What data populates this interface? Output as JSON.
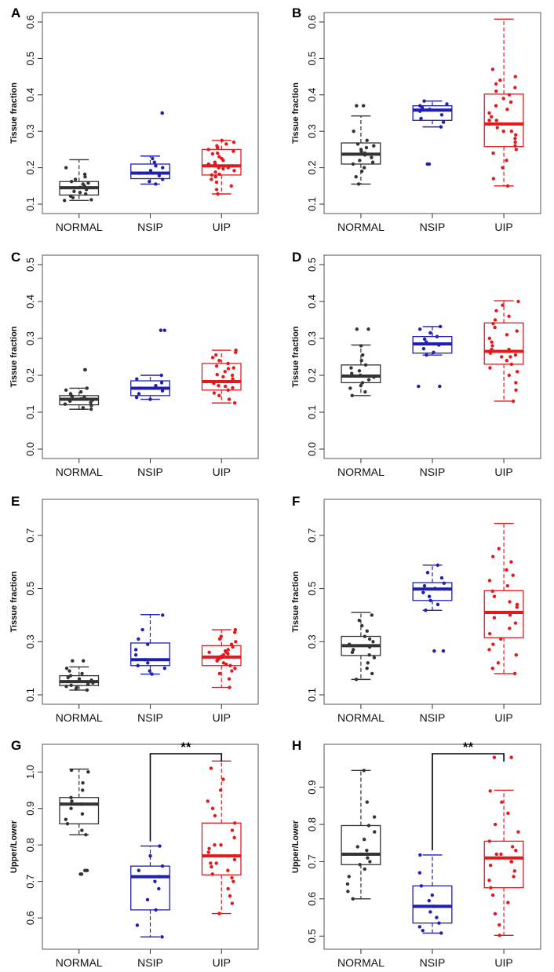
{
  "chart_data": [
    {
      "panel": "A",
      "type": "box",
      "ylabel": "Tissue fraction",
      "ylim": [
        0.1,
        0.6
      ],
      "yticks": [
        0.1,
        0.2,
        0.3,
        0.4,
        0.5,
        0.6
      ],
      "categories": [
        "NORMAL",
        "NSIP",
        "UIP"
      ],
      "boxes": [
        {
          "category": "NORMAL",
          "color": "#333333",
          "whisker_low": 0.11,
          "q1": 0.125,
          "median": 0.145,
          "q3": 0.162,
          "whisker_high": 0.222,
          "points": [
            0.11,
            0.112,
            0.118,
            0.122,
            0.128,
            0.132,
            0.135,
            0.14,
            0.143,
            0.146,
            0.15,
            0.155,
            0.158,
            0.162,
            0.168,
            0.175,
            0.182,
            0.2
          ]
        },
        {
          "category": "NSIP",
          "color": "#1f1fb4",
          "whisker_low": 0.155,
          "q1": 0.17,
          "median": 0.185,
          "q3": 0.21,
          "whisker_high": 0.232,
          "points": [
            0.155,
            0.162,
            0.168,
            0.178,
            0.185,
            0.192,
            0.2,
            0.205,
            0.215,
            0.225,
            0.35,
            0.35
          ]
        },
        {
          "category": "UIP",
          "color": "#e31a1c",
          "whisker_low": 0.128,
          "q1": 0.18,
          "median": 0.205,
          "q3": 0.25,
          "whisker_high": 0.275,
          "points": [
            0.128,
            0.14,
            0.15,
            0.16,
            0.168,
            0.175,
            0.182,
            0.188,
            0.192,
            0.197,
            0.2,
            0.205,
            0.21,
            0.215,
            0.22,
            0.225,
            0.23,
            0.238,
            0.245,
            0.25,
            0.255,
            0.26,
            0.265,
            0.27,
            0.275,
            0.18,
            0.2,
            0.21,
            0.24
          ]
        }
      ]
    },
    {
      "panel": "B",
      "type": "box",
      "ylabel": "Tissue fraction",
      "ylim": [
        0.1,
        0.6
      ],
      "yticks": [
        0.1,
        0.2,
        0.3,
        0.4,
        0.5,
        0.6
      ],
      "categories": [
        "NORMAL",
        "NSIP",
        "UIP"
      ],
      "boxes": [
        {
          "category": "NORMAL",
          "color": "#333333",
          "whisker_low": 0.155,
          "q1": 0.21,
          "median": 0.237,
          "q3": 0.268,
          "whisker_high": 0.342,
          "points": [
            0.155,
            0.175,
            0.19,
            0.2,
            0.21,
            0.215,
            0.22,
            0.228,
            0.235,
            0.24,
            0.245,
            0.25,
            0.255,
            0.26,
            0.265,
            0.275,
            0.3,
            0.37,
            0.37
          ]
        },
        {
          "category": "NSIP",
          "color": "#1f1fb4",
          "whisker_low": 0.312,
          "q1": 0.33,
          "median": 0.358,
          "q3": 0.37,
          "whisker_high": 0.383,
          "points": [
            0.21,
            0.21,
            0.312,
            0.325,
            0.335,
            0.345,
            0.355,
            0.36,
            0.365,
            0.37,
            0.375,
            0.383
          ]
        },
        {
          "category": "UIP",
          "color": "#e31a1c",
          "whisker_low": 0.15,
          "q1": 0.258,
          "median": 0.32,
          "q3": 0.402,
          "whisker_high": 0.608,
          "points": [
            0.15,
            0.17,
            0.2,
            0.22,
            0.24,
            0.25,
            0.26,
            0.27,
            0.28,
            0.29,
            0.3,
            0.31,
            0.32,
            0.33,
            0.34,
            0.35,
            0.36,
            0.37,
            0.38,
            0.39,
            0.4,
            0.41,
            0.42,
            0.43,
            0.44,
            0.45,
            0.47,
            0.3,
            0.33
          ]
        }
      ]
    },
    {
      "panel": "C",
      "type": "box",
      "ylabel": "Tissue fraction",
      "ylim": [
        0.0,
        0.5
      ],
      "yticks": [
        0.0,
        0.1,
        0.2,
        0.3,
        0.4,
        0.5
      ],
      "categories": [
        "NORMAL",
        "NSIP",
        "UIP"
      ],
      "boxes": [
        {
          "category": "NORMAL",
          "color": "#333333",
          "whisker_low": 0.108,
          "q1": 0.12,
          "median": 0.135,
          "q3": 0.145,
          "whisker_high": 0.165,
          "points": [
            0.108,
            0.112,
            0.118,
            0.122,
            0.126,
            0.13,
            0.133,
            0.136,
            0.14,
            0.143,
            0.146,
            0.15,
            0.155,
            0.16,
            0.165,
            0.215,
            0.215
          ]
        },
        {
          "category": "NSIP",
          "color": "#1f1fb4",
          "whisker_low": 0.135,
          "q1": 0.145,
          "median": 0.165,
          "q3": 0.185,
          "whisker_high": 0.2,
          "points": [
            0.135,
            0.14,
            0.15,
            0.158,
            0.165,
            0.172,
            0.18,
            0.19,
            0.2,
            0.322,
            0.322
          ]
        },
        {
          "category": "UIP",
          "color": "#e31a1c",
          "whisker_low": 0.125,
          "q1": 0.16,
          "median": 0.183,
          "q3": 0.232,
          "whisker_high": 0.268,
          "points": [
            0.125,
            0.135,
            0.145,
            0.152,
            0.16,
            0.166,
            0.172,
            0.178,
            0.183,
            0.19,
            0.196,
            0.202,
            0.21,
            0.218,
            0.225,
            0.232,
            0.24,
            0.248,
            0.255,
            0.262,
            0.268,
            0.17,
            0.2,
            0.22
          ]
        }
      ]
    },
    {
      "panel": "D",
      "type": "box",
      "ylabel": "Tissue fraction",
      "ylim": [
        0.0,
        0.5
      ],
      "yticks": [
        0.0,
        0.1,
        0.2,
        0.3,
        0.4,
        0.5
      ],
      "categories": [
        "NORMAL",
        "NSIP",
        "UIP"
      ],
      "boxes": [
        {
          "category": "NORMAL",
          "color": "#333333",
          "whisker_low": 0.145,
          "q1": 0.18,
          "median": 0.198,
          "q3": 0.228,
          "whisker_high": 0.282,
          "points": [
            0.145,
            0.155,
            0.165,
            0.172,
            0.18,
            0.188,
            0.195,
            0.2,
            0.205,
            0.212,
            0.22,
            0.228,
            0.24,
            0.255,
            0.28,
            0.325,
            0.325
          ]
        },
        {
          "category": "NSIP",
          "color": "#1f1fb4",
          "whisker_low": 0.255,
          "q1": 0.26,
          "median": 0.285,
          "q3": 0.305,
          "whisker_high": 0.332,
          "points": [
            0.17,
            0.17,
            0.255,
            0.262,
            0.272,
            0.282,
            0.29,
            0.298,
            0.305,
            0.315,
            0.325,
            0.332
          ]
        },
        {
          "category": "UIP",
          "color": "#e31a1c",
          "whisker_low": 0.13,
          "q1": 0.23,
          "median": 0.265,
          "q3": 0.342,
          "whisker_high": 0.402,
          "points": [
            0.13,
            0.16,
            0.18,
            0.2,
            0.21,
            0.22,
            0.23,
            0.24,
            0.25,
            0.255,
            0.26,
            0.265,
            0.27,
            0.28,
            0.29,
            0.3,
            0.31,
            0.32,
            0.33,
            0.34,
            0.35,
            0.36,
            0.375,
            0.39,
            0.4,
            0.25,
            0.27
          ]
        }
      ]
    },
    {
      "panel": "E",
      "type": "box",
      "ylabel": "Tissue fraction",
      "ylim": [
        0.1,
        0.8
      ],
      "yticks": [
        0.1,
        0.3,
        0.5,
        0.7
      ],
      "categories": [
        "NORMAL",
        "NSIP",
        "UIP"
      ],
      "boxes": [
        {
          "category": "NORMAL",
          "color": "#333333",
          "whisker_low": 0.118,
          "q1": 0.135,
          "median": 0.15,
          "q3": 0.172,
          "whisker_high": 0.205,
          "points": [
            0.118,
            0.122,
            0.128,
            0.132,
            0.136,
            0.14,
            0.145,
            0.15,
            0.155,
            0.16,
            0.165,
            0.172,
            0.18,
            0.19,
            0.2,
            0.228,
            0.228
          ]
        },
        {
          "category": "NSIP",
          "color": "#1f1fb4",
          "whisker_low": 0.178,
          "q1": 0.21,
          "median": 0.232,
          "q3": 0.295,
          "whisker_high": 0.402,
          "points": [
            0.178,
            0.19,
            0.2,
            0.21,
            0.22,
            0.232,
            0.25,
            0.27,
            0.29,
            0.31,
            0.345,
            0.4
          ]
        },
        {
          "category": "UIP",
          "color": "#e31a1c",
          "whisker_low": 0.128,
          "q1": 0.21,
          "median": 0.242,
          "q3": 0.285,
          "whisker_high": 0.345,
          "points": [
            0.128,
            0.16,
            0.18,
            0.19,
            0.2,
            0.21,
            0.215,
            0.22,
            0.228,
            0.235,
            0.24,
            0.245,
            0.25,
            0.255,
            0.26,
            0.265,
            0.27,
            0.28,
            0.29,
            0.3,
            0.31,
            0.32,
            0.335,
            0.345,
            0.23,
            0.26
          ]
        }
      ]
    },
    {
      "panel": "F",
      "type": "box",
      "ylabel": "Tissue fraction",
      "ylim": [
        0.1,
        0.8
      ],
      "yticks": [
        0.1,
        0.3,
        0.5,
        0.7
      ],
      "categories": [
        "NORMAL",
        "NSIP",
        "UIP"
      ],
      "boxes": [
        {
          "category": "NORMAL",
          "color": "#333333",
          "whisker_low": 0.158,
          "q1": 0.248,
          "median": 0.285,
          "q3": 0.32,
          "whisker_high": 0.41,
          "points": [
            0.158,
            0.18,
            0.2,
            0.22,
            0.24,
            0.25,
            0.26,
            0.27,
            0.28,
            0.29,
            0.3,
            0.31,
            0.32,
            0.34,
            0.36,
            0.38,
            0.4
          ]
        },
        {
          "category": "NSIP",
          "color": "#1f1fb4",
          "whisker_low": 0.418,
          "q1": 0.455,
          "median": 0.498,
          "q3": 0.522,
          "whisker_high": 0.588,
          "points": [
            0.265,
            0.265,
            0.418,
            0.44,
            0.455,
            0.47,
            0.485,
            0.5,
            0.51,
            0.52,
            0.54,
            0.56,
            0.588
          ]
        },
        {
          "category": "UIP",
          "color": "#e31a1c",
          "whisker_low": 0.18,
          "q1": 0.315,
          "median": 0.41,
          "q3": 0.492,
          "whisker_high": 0.745,
          "points": [
            0.18,
            0.2,
            0.22,
            0.25,
            0.27,
            0.29,
            0.31,
            0.33,
            0.35,
            0.37,
            0.39,
            0.41,
            0.43,
            0.45,
            0.47,
            0.49,
            0.51,
            0.53,
            0.55,
            0.57,
            0.6,
            0.62,
            0.65,
            0.4,
            0.44
          ]
        }
      ]
    },
    {
      "panel": "G",
      "type": "box",
      "ylabel": "Upper/Lower",
      "ylim": [
        0.54,
        1.05
      ],
      "yticks": [
        0.6,
        0.7,
        0.8,
        0.9,
        1.0
      ],
      "categories": [
        "NORMAL",
        "NSIP",
        "UIP"
      ],
      "significance": {
        "from": "NSIP",
        "to": "UIP",
        "label": "**"
      },
      "boxes": [
        {
          "category": "NORMAL",
          "color": "#333333",
          "whisker_low": 0.828,
          "q1": 0.858,
          "median": 0.912,
          "q3": 0.93,
          "whisker_high": 1.008,
          "points": [
            0.72,
            0.72,
            0.73,
            0.73,
            0.828,
            0.84,
            0.858,
            0.87,
            0.885,
            0.9,
            0.912,
            0.92,
            0.93,
            0.95,
            0.97,
            1.0,
            1.005
          ]
        },
        {
          "category": "NSIP",
          "color": "#1f1fb4",
          "whisker_low": 0.548,
          "q1": 0.622,
          "median": 0.713,
          "q3": 0.742,
          "whisker_high": 0.797,
          "points": [
            0.548,
            0.58,
            0.622,
            0.65,
            0.68,
            0.7,
            0.713,
            0.73,
            0.742,
            0.77,
            0.797
          ]
        },
        {
          "category": "UIP",
          "color": "#e31a1c",
          "whisker_low": 0.612,
          "q1": 0.718,
          "median": 0.77,
          "q3": 0.86,
          "whisker_high": 1.03,
          "points": [
            0.612,
            0.64,
            0.66,
            0.68,
            0.7,
            0.71,
            0.72,
            0.73,
            0.74,
            0.75,
            0.76,
            0.77,
            0.78,
            0.79,
            0.8,
            0.82,
            0.84,
            0.86,
            0.88,
            0.9,
            0.92,
            0.95,
            0.98,
            1.01,
            0.75,
            0.8
          ]
        }
      ]
    },
    {
      "panel": "H",
      "type": "box",
      "ylabel": "Upper/Lower",
      "ylim": [
        0.49,
        0.99
      ],
      "yticks": [
        0.5,
        0.6,
        0.7,
        0.8,
        0.9
      ],
      "categories": [
        "NORMAL",
        "NSIP",
        "UIP"
      ],
      "significance": {
        "from": "NSIP",
        "to": "UIP",
        "label": "**"
      },
      "boxes": [
        {
          "category": "NORMAL",
          "color": "#333333",
          "whisker_low": 0.6,
          "q1": 0.692,
          "median": 0.72,
          "q3": 0.797,
          "whisker_high": 0.945,
          "points": [
            0.6,
            0.62,
            0.64,
            0.66,
            0.68,
            0.692,
            0.7,
            0.71,
            0.72,
            0.73,
            0.74,
            0.76,
            0.78,
            0.797,
            0.82,
            0.86,
            0.945
          ]
        },
        {
          "category": "NSIP",
          "color": "#1f1fb4",
          "whisker_low": 0.508,
          "q1": 0.535,
          "median": 0.58,
          "q3": 0.635,
          "whisker_high": 0.718,
          "points": [
            0.508,
            0.515,
            0.525,
            0.535,
            0.55,
            0.565,
            0.58,
            0.595,
            0.61,
            0.635,
            0.67,
            0.718
          ]
        },
        {
          "category": "UIP",
          "color": "#e31a1c",
          "whisker_low": 0.502,
          "q1": 0.63,
          "median": 0.71,
          "q3": 0.755,
          "whisker_high": 0.892,
          "points": [
            0.502,
            0.53,
            0.56,
            0.59,
            0.61,
            0.63,
            0.65,
            0.66,
            0.675,
            0.69,
            0.7,
            0.71,
            0.72,
            0.73,
            0.74,
            0.755,
            0.78,
            0.8,
            0.83,
            0.86,
            0.89,
            0.98,
            0.98,
            0.7,
            0.72
          ]
        }
      ]
    }
  ]
}
